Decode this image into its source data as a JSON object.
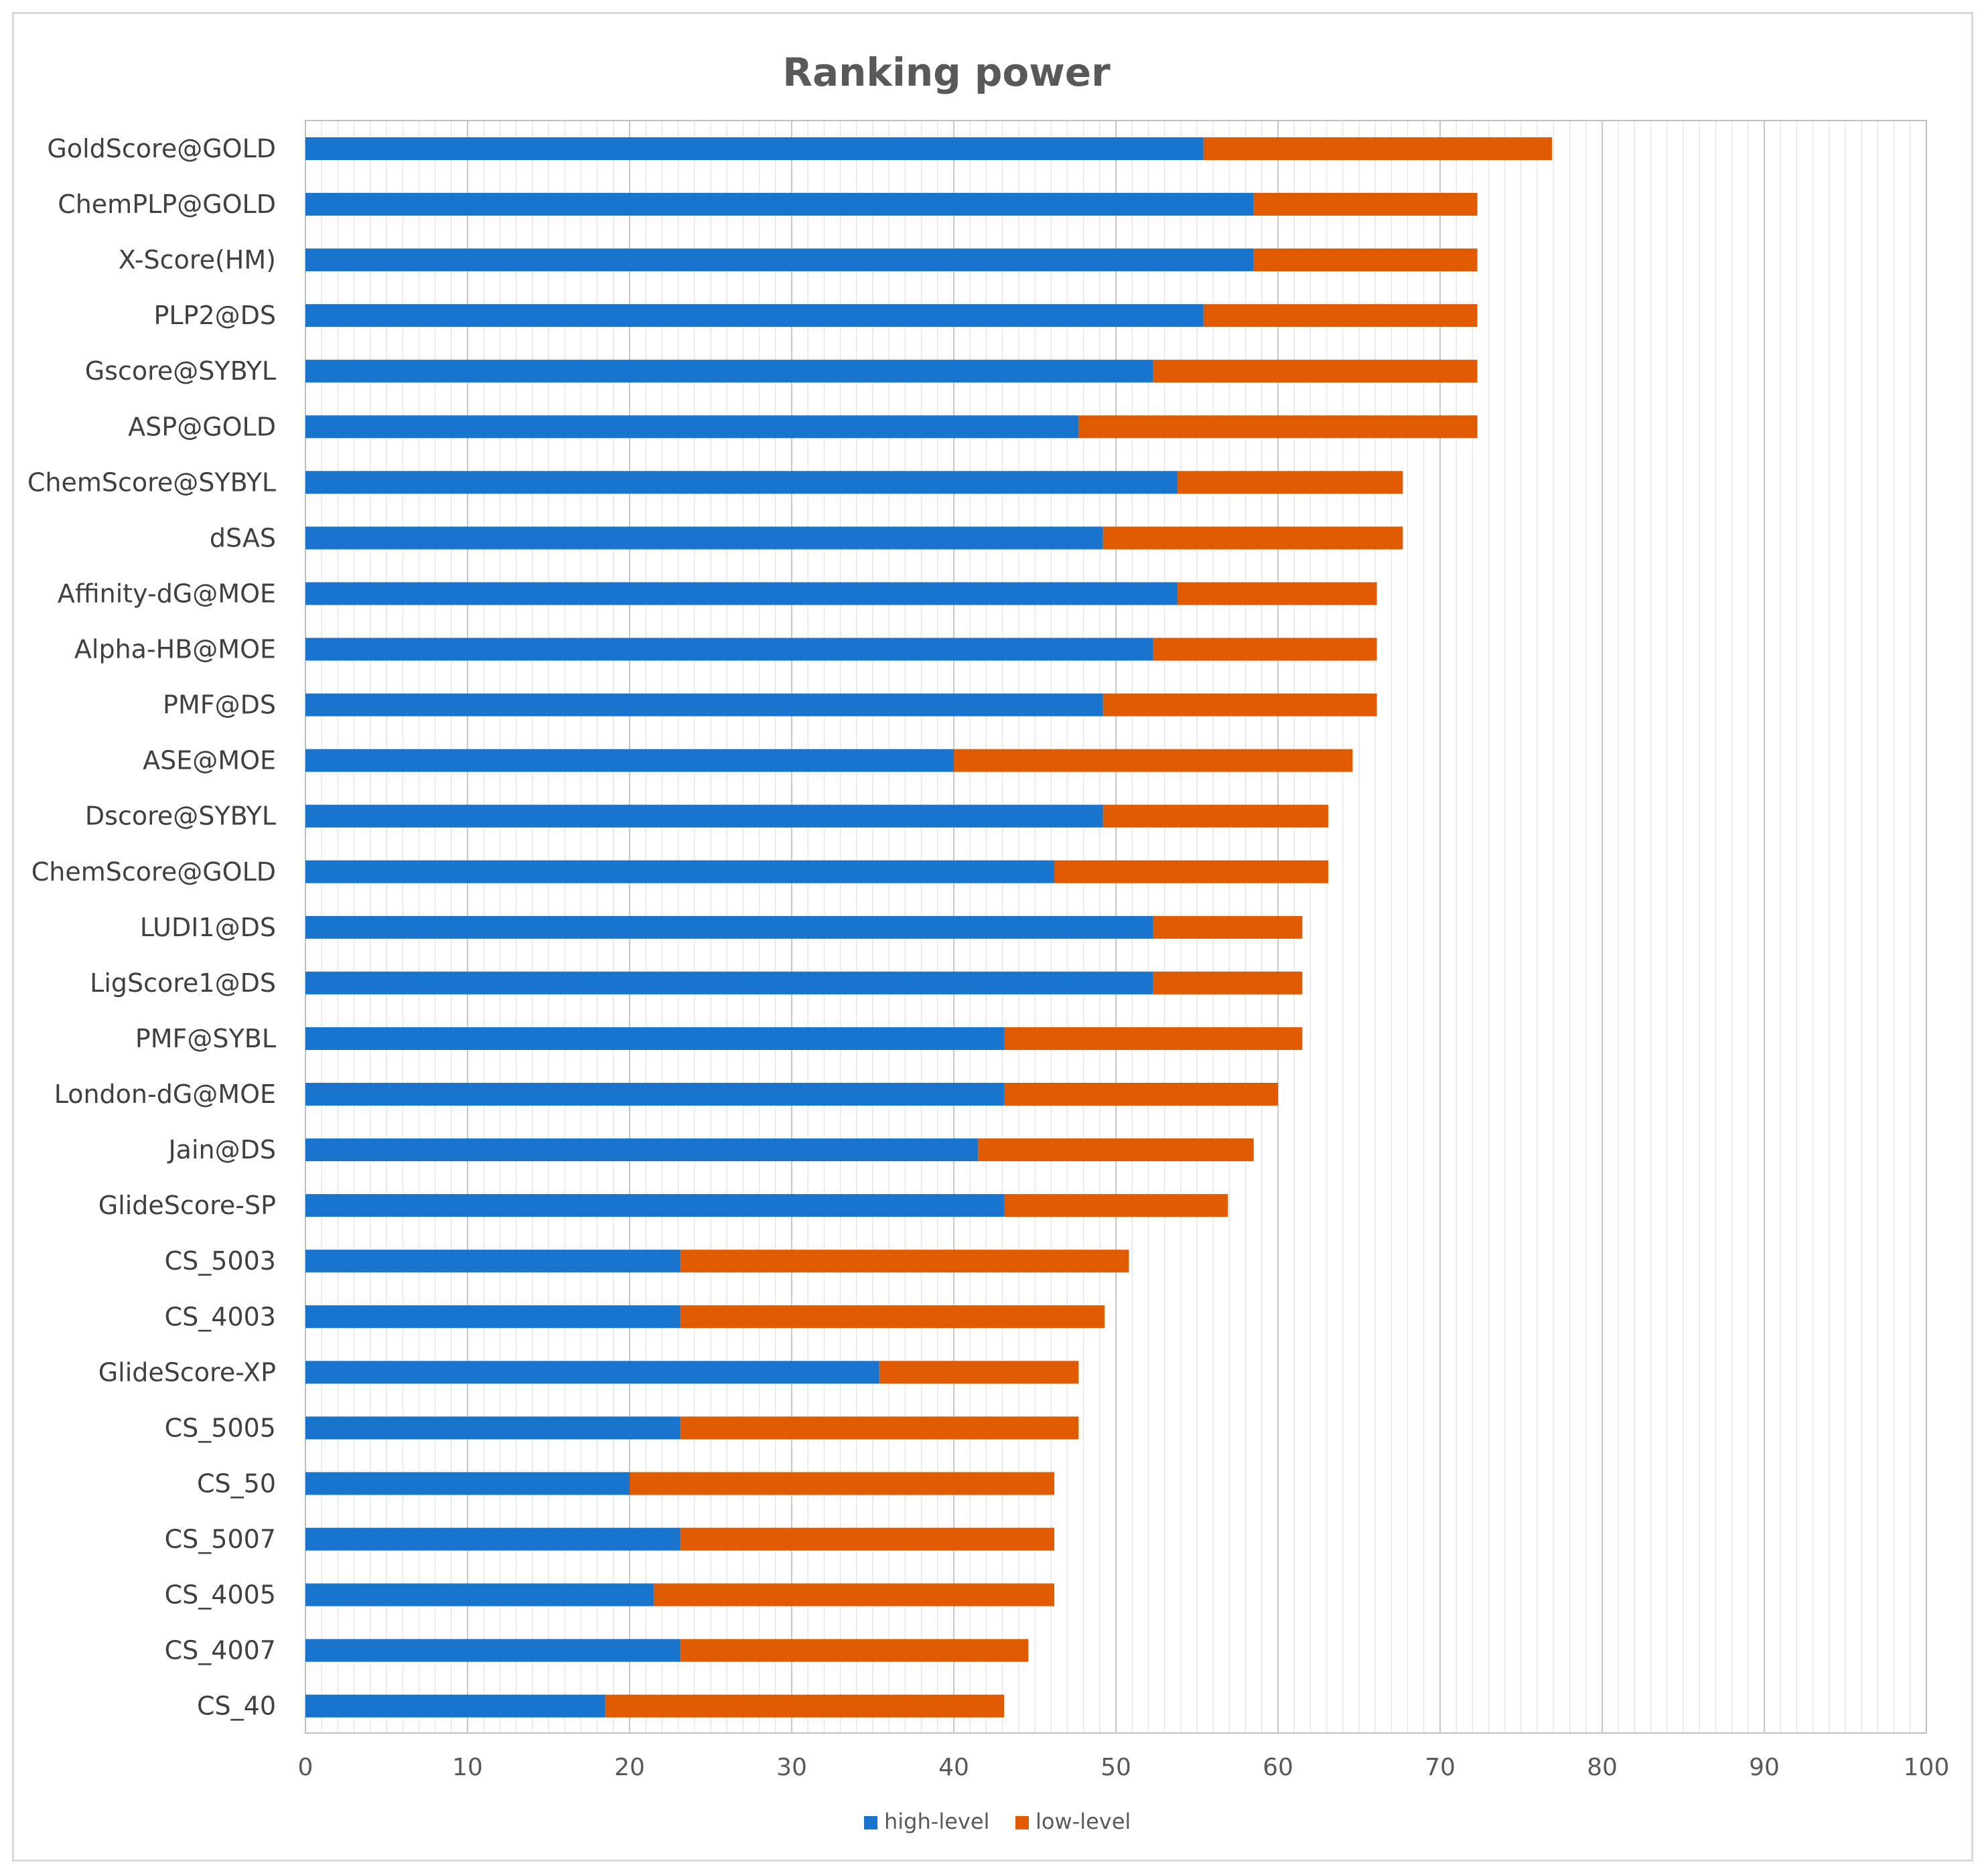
{
  "chart_data": {
    "type": "bar",
    "orientation": "horizontal",
    "stacked": true,
    "title": "Ranking power",
    "xlabel": "",
    "ylabel": "",
    "xlim": [
      0,
      100
    ],
    "x_ticks": [
      0,
      10,
      20,
      30,
      40,
      50,
      60,
      70,
      80,
      90,
      100
    ],
    "grid": "vertical, minor every 1",
    "legend_position": "bottom",
    "categories": [
      "GoldScore@GOLD",
      "ChemPLP@GOLD",
      "X-Score(HM)",
      "PLP2@DS",
      "Gscore@SYBYL",
      "ASP@GOLD",
      "ChemScore@SYBYL",
      "dSAS",
      "Affinity-dG@MOE",
      "Alpha-HB@MOE",
      "PMF@DS",
      "ASE@MOE",
      "Dscore@SYBYL",
      "ChemScore@GOLD",
      "LUDI1@DS",
      "LigScore1@DS",
      "PMF@SYBL",
      "London-dG@MOE",
      "Jain@DS",
      "GlideScore-SP",
      "CS_5003",
      "CS_4003",
      "GlideScore-XP",
      "CS_5005",
      "CS_50",
      "CS_5007",
      "CS_4005",
      "CS_4007",
      "CS_40"
    ],
    "series": [
      {
        "name": "high-level",
        "color": "#1874cd",
        "values": [
          55.4,
          58.5,
          58.5,
          55.4,
          52.3,
          47.7,
          53.8,
          49.2,
          53.8,
          52.3,
          49.2,
          40.0,
          49.2,
          46.2,
          52.3,
          52.3,
          43.1,
          43.1,
          41.5,
          43.1,
          23.1,
          23.1,
          35.4,
          23.1,
          20.0,
          23.1,
          21.5,
          23.1,
          18.5
        ]
      },
      {
        "name": "low-level",
        "color": "#e05a00",
        "values": [
          21.5,
          13.8,
          13.8,
          16.9,
          20.0,
          24.6,
          13.9,
          18.5,
          12.3,
          13.8,
          16.9,
          24.6,
          13.9,
          16.9,
          9.2,
          9.2,
          18.4,
          16.9,
          17.0,
          13.8,
          27.7,
          26.2,
          12.3,
          24.6,
          26.2,
          23.1,
          24.7,
          21.5,
          24.6
        ]
      }
    ]
  }
}
